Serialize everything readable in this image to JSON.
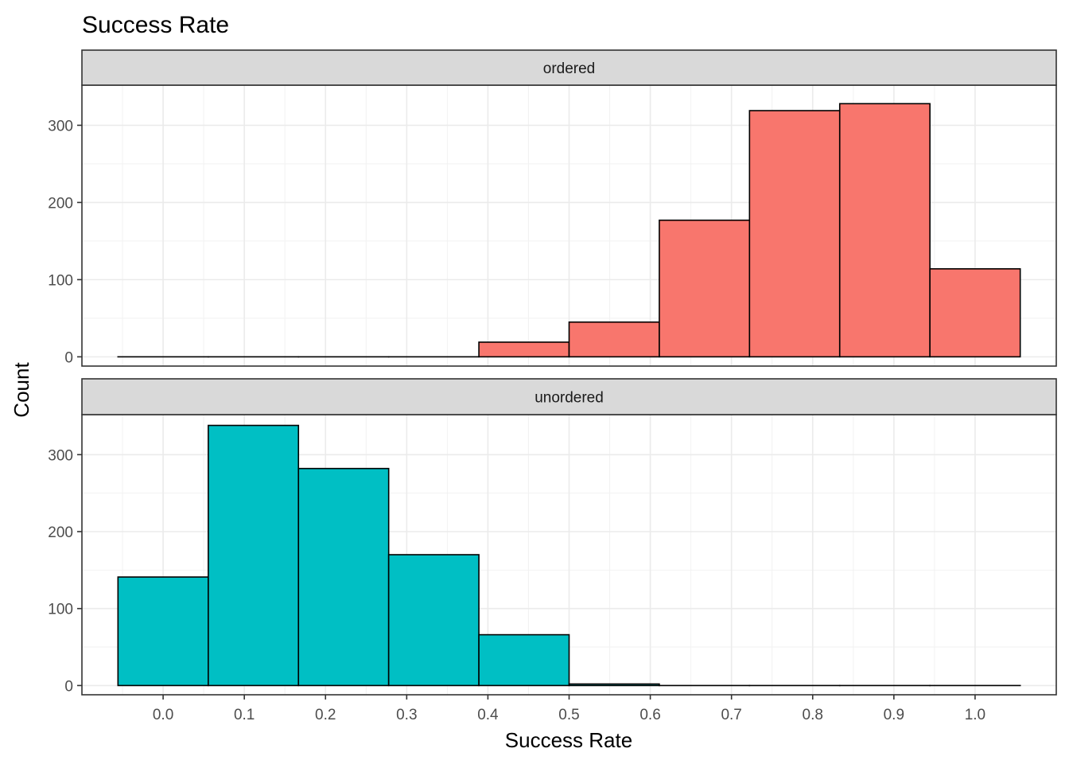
{
  "chart_data": {
    "type": "bar",
    "title": "Success Rate",
    "xlabel": "Success Rate",
    "ylabel": "Count",
    "xlim": [
      -0.1,
      1.1
    ],
    "ylim": [
      -12,
      352
    ],
    "x_ticks": [
      "0.0",
      "0.1",
      "0.2",
      "0.3",
      "0.4",
      "0.5",
      "0.6",
      "0.7",
      "0.8",
      "0.9",
      "1.0"
    ],
    "y_ticks": [
      "0",
      "100",
      "200",
      "300"
    ],
    "grid": true,
    "bin_edges": [
      -0.0556,
      0.0556,
      0.1667,
      0.2778,
      0.3889,
      0.5,
      0.6111,
      0.7222,
      0.8333,
      0.9444,
      1.0556
    ],
    "panels": [
      {
        "strip_label": "ordered",
        "fill": "#F8766D",
        "counts": [
          0,
          0,
          0,
          0,
          19,
          45,
          177,
          319,
          328,
          114
        ]
      },
      {
        "strip_label": "unordered",
        "fill": "#00BFC4",
        "counts": [
          141,
          338,
          282,
          170,
          66,
          2,
          0,
          0,
          0,
          0
        ]
      }
    ]
  }
}
